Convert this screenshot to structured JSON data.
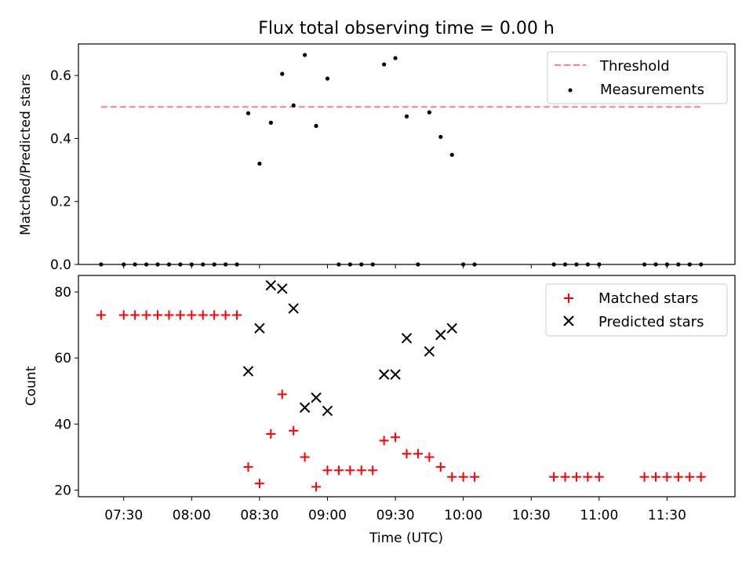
{
  "figure": {
    "title": "Flux total observing time = 0.00 h",
    "xlabel": "Time (UTC)",
    "xticks": [
      "07:30",
      "08:00",
      "08:30",
      "09:00",
      "09:30",
      "10:00",
      "10:30",
      "11:00",
      "11:30"
    ]
  },
  "chart_data": [
    {
      "type": "scatter",
      "ylabel": "Matched/Predicted stars",
      "xlim": [
        "07:10",
        "12:00"
      ],
      "ylim": [
        0,
        0.7
      ],
      "yticks": [
        "0.0",
        "0.2",
        "0.4",
        "0.6"
      ],
      "legend_position": "top-right",
      "threshold": {
        "name": "Threshold",
        "value": 0.5,
        "x_range": [
          "07:20",
          "11:45"
        ],
        "color": "#ff7f7f"
      },
      "series": [
        {
          "name": "Measurements",
          "color": "#000000",
          "x": [
            "07:20",
            "07:30",
            "07:35",
            "07:40",
            "07:45",
            "07:50",
            "07:55",
            "08:00",
            "08:05",
            "08:10",
            "08:15",
            "08:20",
            "08:25",
            "08:30",
            "08:35",
            "08:40",
            "08:45",
            "08:50",
            "08:55",
            "09:00",
            "09:05",
            "09:10",
            "09:15",
            "09:20",
            "09:25",
            "09:30",
            "09:35",
            "09:40",
            "09:45",
            "09:50",
            "09:55",
            "10:00",
            "10:05",
            "10:40",
            "10:45",
            "10:50",
            "10:55",
            "11:00",
            "11:20",
            "11:25",
            "11:30",
            "11:35",
            "11:40",
            "11:45"
          ],
          "y": [
            0,
            0,
            0,
            0,
            0,
            0,
            0,
            0,
            0,
            0,
            0,
            0,
            0.48,
            0.32,
            0.45,
            0.605,
            0.505,
            0.665,
            0.44,
            0.59,
            0,
            0,
            0,
            0,
            0.635,
            0.655,
            0.47,
            0,
            0.483,
            0.405,
            0.348,
            0,
            0,
            0,
            0,
            0,
            0,
            0,
            0,
            0,
            0,
            0,
            0,
            0
          ]
        }
      ]
    },
    {
      "type": "scatter",
      "ylabel": "Count",
      "xlim": [
        "07:10",
        "12:00"
      ],
      "ylim": [
        18,
        85
      ],
      "yticks": [
        "20",
        "40",
        "60",
        "80"
      ],
      "legend_position": "top-right",
      "series": [
        {
          "name": "Matched stars",
          "color": "#ff0000",
          "marker": "plus",
          "x": [
            "07:20",
            "07:30",
            "07:35",
            "07:40",
            "07:45",
            "07:50",
            "07:55",
            "08:00",
            "08:05",
            "08:10",
            "08:15",
            "08:20",
            "08:25",
            "08:30",
            "08:35",
            "08:40",
            "08:45",
            "08:50",
            "08:55",
            "09:00",
            "09:05",
            "09:10",
            "09:15",
            "09:20",
            "09:25",
            "09:30",
            "09:35",
            "09:40",
            "09:45",
            "09:50",
            "09:55",
            "10:00",
            "10:05",
            "10:40",
            "10:45",
            "10:50",
            "10:55",
            "11:00",
            "11:20",
            "11:25",
            "11:30",
            "11:35",
            "11:40",
            "11:45"
          ],
          "y": [
            73,
            73,
            73,
            73,
            73,
            73,
            73,
            73,
            73,
            73,
            73,
            73,
            27,
            22,
            37,
            49,
            38,
            30,
            21,
            26,
            26,
            26,
            26,
            26,
            35,
            36,
            31,
            31,
            30,
            27,
            24,
            24,
            24,
            24,
            24,
            24,
            24,
            24,
            24,
            24,
            24,
            24,
            24,
            24
          ]
        },
        {
          "name": "Predicted stars",
          "color": "#000000",
          "marker": "x",
          "x": [
            "08:25",
            "08:30",
            "08:35",
            "08:40",
            "08:45",
            "08:50",
            "08:55",
            "09:00",
            "09:25",
            "09:30",
            "09:35",
            "09:45",
            "09:50",
            "09:55"
          ],
          "y": [
            56,
            69,
            82,
            81,
            75,
            45,
            48,
            44,
            55,
            55,
            66,
            62,
            67,
            69
          ]
        }
      ]
    }
  ]
}
